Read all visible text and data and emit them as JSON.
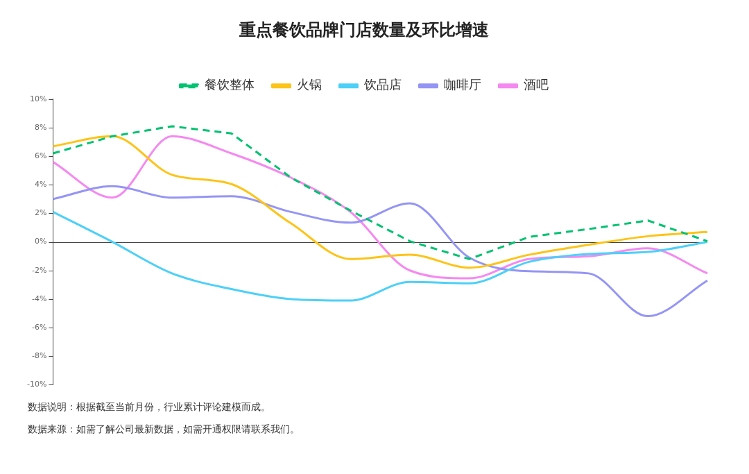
{
  "chart_data": {
    "type": "line",
    "title": "重点餐饮品牌门店数量及环比增速",
    "categories": [
      null,
      null,
      null,
      null,
      null,
      null,
      null,
      null,
      null,
      null,
      null,
      null
    ],
    "series": [
      {
        "name": "餐饮整体",
        "color": "#00c271",
        "line_style": "dashed",
        "values": [
          6.2,
          7.4,
          8.1,
          7.6,
          4.5,
          2.2,
          0.05,
          -1.2,
          0.35,
          0.9,
          1.5,
          0.05
        ]
      },
      {
        "name": "火锅",
        "color": "#fcc419",
        "values": [
          6.7,
          7.4,
          4.7,
          4.05,
          1.3,
          -1.2,
          -0.9,
          -1.8,
          -0.9,
          -0.2,
          0.4,
          0.7
        ]
      },
      {
        "name": "饮品店",
        "color": "#4dd0f7",
        "values": [
          2.1,
          0,
          -2.2,
          -3.3,
          -4.0,
          -4.1,
          -2.8,
          -2.9,
          -1.4,
          -0.85,
          -0.7,
          0
        ]
      },
      {
        "name": "咖啡厅",
        "color": "#9595f5",
        "values": [
          3.0,
          3.9,
          3.1,
          3.2,
          2.1,
          1.35,
          2.7,
          -1.1,
          -2.05,
          -2.2,
          -5.2,
          -2.7
        ]
      },
      {
        "name": "酒吧",
        "color": "#f589f0",
        "values": [
          5.6,
          3.1,
          7.4,
          6.2,
          4.5,
          2.1,
          -2.0,
          -2.55,
          -1.2,
          -1.0,
          -0.45,
          -2.2
        ]
      }
    ],
    "ylim": [
      -10,
      10
    ],
    "yticks": [
      {
        "value": -10,
        "label": "-10%"
      },
      {
        "value": -8,
        "label": "-8%"
      },
      {
        "value": -6,
        "label": "-6%"
      },
      {
        "value": -4,
        "label": "-4%"
      },
      {
        "value": -2,
        "label": "-2%"
      },
      {
        "value": 0,
        "label": "0%"
      },
      {
        "value": 2,
        "label": "2%"
      },
      {
        "value": 4,
        "label": "4%"
      },
      {
        "value": 6,
        "label": "6%"
      },
      {
        "value": 8,
        "label": "8%"
      },
      {
        "value": 10,
        "label": "10%"
      }
    ],
    "ref_lines": [
      {
        "axis": "y",
        "value": 0,
        "label": null,
        "color": "#444444"
      }
    ],
    "grid": false,
    "legend": "top",
    "marker": "none",
    "line_style": "solid",
    "annotations": [
      "数据说明：根据截至当前月份，行业累计评论建模而成。",
      "数据来源：如需了解公司最新数据，如需开通权限请联系我们。"
    ]
  }
}
